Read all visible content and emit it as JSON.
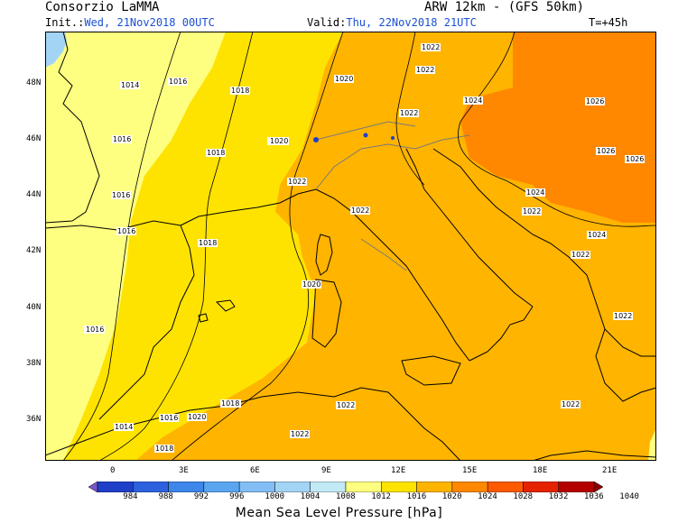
{
  "header": {
    "org": "Consorzio LaMMA",
    "model": "ARW 12km - (GFS 50km)",
    "init_label": "Init.:",
    "init_value": "Wed, 21Nov2018 00UTC",
    "valid_label": "Valid:",
    "valid_value": "Thu, 22Nov2018 21UTC",
    "lead": "T=+45h"
  },
  "lat_labels": [
    "48N",
    "46N",
    "44N",
    "42N",
    "40N",
    "38N",
    "36N"
  ],
  "lon_labels": [
    "0",
    "3E",
    "6E",
    "9E",
    "12E",
    "15E",
    "18E",
    "21E"
  ],
  "isobar_labels": [
    "1014",
    "1016",
    "1018",
    "1020",
    "1022",
    "1022",
    "1024",
    "1026",
    "1016",
    "1018",
    "1020",
    "1020",
    "1022",
    "1022",
    "1026",
    "1026",
    "1016",
    "1022",
    "1022",
    "1024",
    "1022",
    "1024",
    "1016",
    "1018",
    "1022",
    "1016",
    "1020",
    "1022",
    "1018",
    "1016",
    "1020",
    "1022",
    "1022",
    "1018",
    "1014",
    "1016",
    "1022",
    "1018"
  ],
  "colorbar": {
    "title": "Mean Sea Level Pressure [hPa]",
    "ticks": [
      "984",
      "988",
      "992",
      "996",
      "1000",
      "1004",
      "1008",
      "1012",
      "1016",
      "1020",
      "1024",
      "1028",
      "1032",
      "1036",
      "1040"
    ],
    "colors": [
      "#7a55c8",
      "#1f3fc8",
      "#2d61dd",
      "#3d86ea",
      "#5aa5f0",
      "#82bef5",
      "#a4d4f5",
      "#c2eaf6",
      "#fefe80",
      "#fee300",
      "#ffb400",
      "#ff8800",
      "#fe5a00",
      "#e52200",
      "#b50000",
      "#8a0000"
    ]
  }
}
